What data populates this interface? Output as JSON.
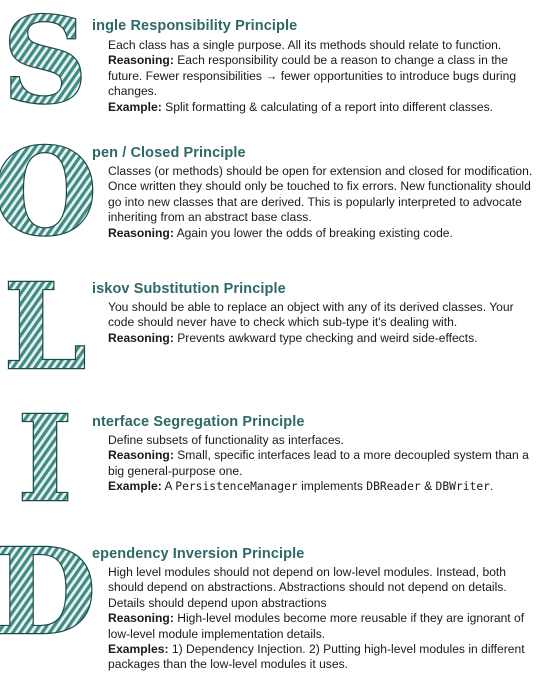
{
  "principles": [
    {
      "letter": "S",
      "title_rest": "ingle Responsibility Principle",
      "desc": "Each class has a single purpose. All its methods should relate to function.",
      "reasoning_label": "Reasoning:",
      "reasoning": "Each responsibility could be a reason to change a class in the future. Fewer responsibilities → fewer opportunities to introduce bugs during changes.",
      "example_label": "Example:",
      "example": "Split formatting & calculating of a report into different classes."
    },
    {
      "letter": "O",
      "title_rest": "pen / Closed Principle",
      "desc": "Classes (or methods) should be open for extension and closed for modification. Once written they should only be touched to fix errors. New functionality should go into new classes that are derived. This is popularly interpreted to advocate inheriting from an abstract base class.",
      "reasoning_label": "Reasoning:",
      "reasoning": "Again you lower the odds of breaking existing code."
    },
    {
      "letter": "L",
      "title_rest": "iskov Substitution Principle",
      "desc": "You should be able to replace an object with any of its derived classes. Your code should never have to check which sub-type it's dealing with.",
      "reasoning_label": "Reasoning:",
      "reasoning": "Prevents awkward type checking and weird side-effects."
    },
    {
      "letter": "I",
      "title_rest": "nterface Segregation Principle",
      "desc": "Define subsets of functionality as interfaces.",
      "reasoning_label": "Reasoning:",
      "reasoning": "Small, specific interfaces lead to a more decoupled system than a big general-purpose one.",
      "example_label": "Example:",
      "example_a": "A",
      "example_code1": "PersistenceManager",
      "example_b": "implements",
      "example_code2": "DBReader",
      "example_c": "&",
      "example_code3": "DBWriter",
      "example_d": "."
    },
    {
      "letter": "D",
      "title_rest": "ependency Inversion Principle",
      "desc": "High level modules should not depend on low-level modules. Instead, both should depend on abstractions. Abstractions should not depend on details. Details should depend upon abstractions",
      "reasoning_label": "Reasoning:",
      "reasoning": "High-level modules become more reusable if they are ignorant of low-level module implementation details.",
      "example_label": "Examples:",
      "example": "1) Dependency Injection. 2) Putting high-level modules in different packages than the low-level modules it uses."
    }
  ],
  "colors": {
    "accent": "#2d6967",
    "letter_fill": "#4f9e97",
    "letter_stroke": "#1c4a47"
  }
}
